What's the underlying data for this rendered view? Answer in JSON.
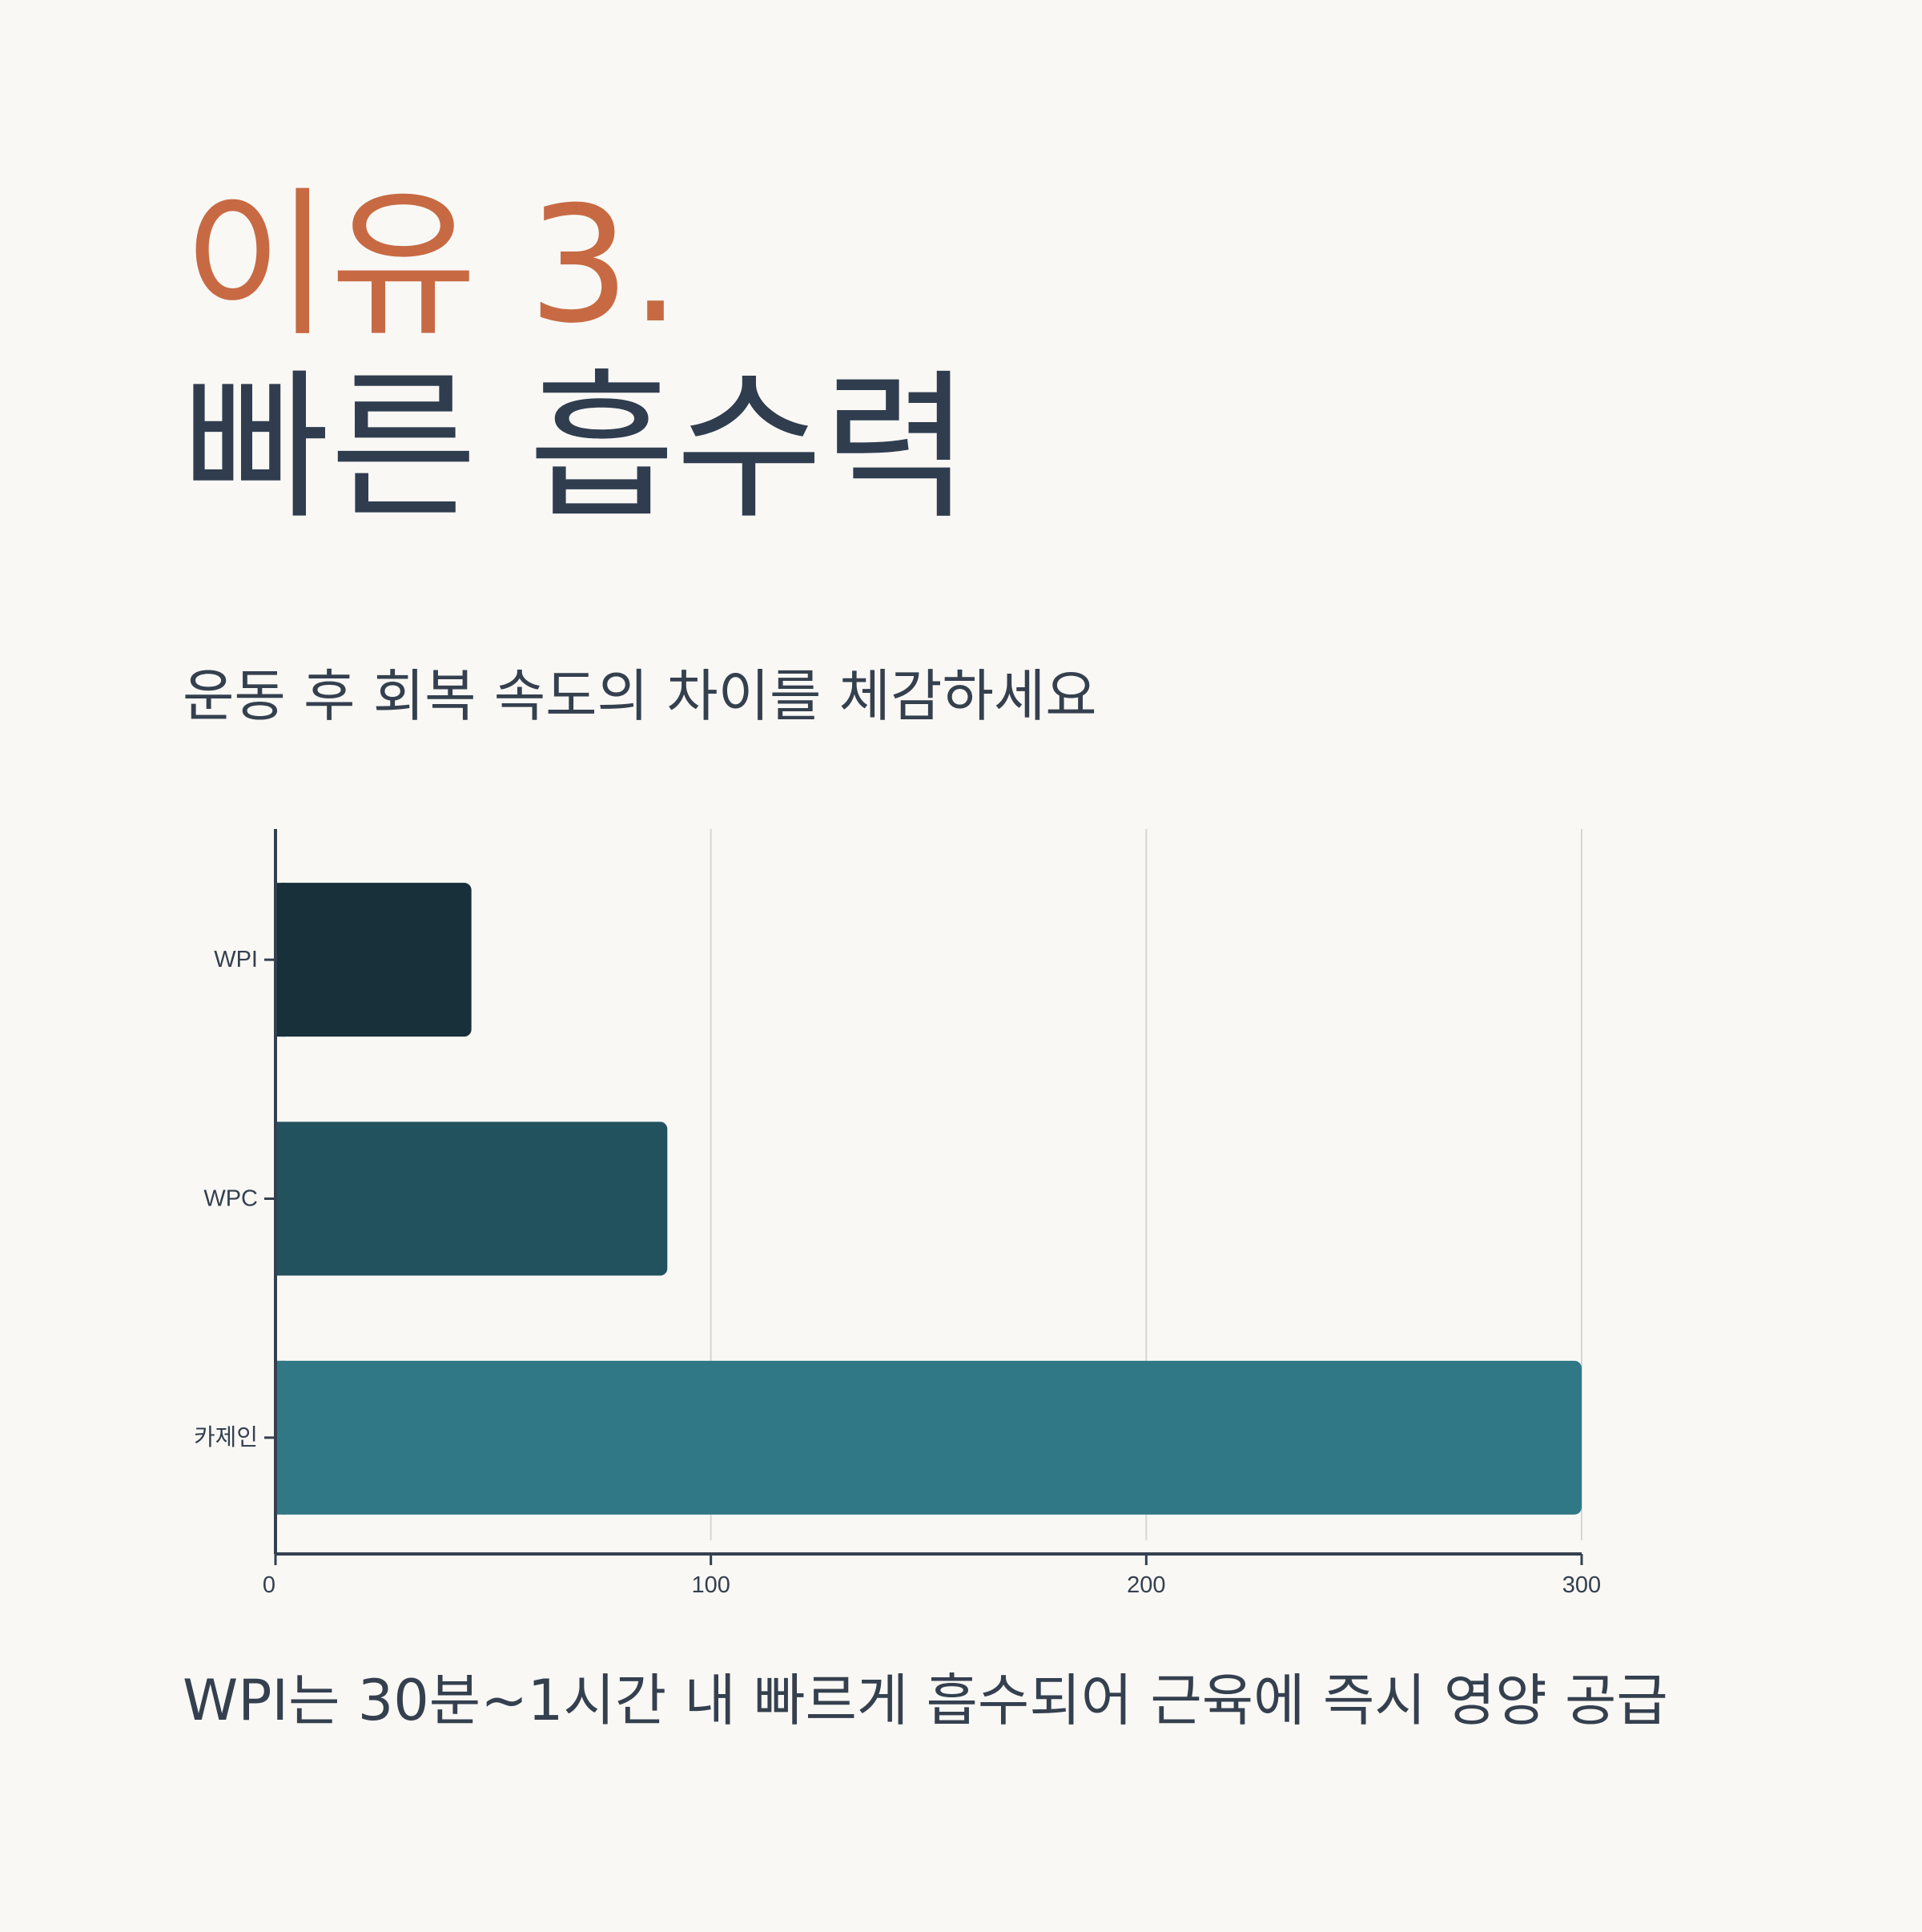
{
  "header": {
    "title_accent": "이유 3.",
    "title_main": "빠른 흡수력",
    "subtitle": "운동 후 회복 속도의 차이를 체감하세요"
  },
  "footnote": "WPI는 30분~1시간 내 빠르게 흡수되어 근육에 즉시 영양 공급",
  "colors": {
    "accent": "#c76a43",
    "text": "#35404f",
    "grid": "#d6d6d6",
    "axis": "#35404f"
  },
  "chart_data": {
    "type": "bar",
    "orientation": "horizontal",
    "categories": [
      "WPI",
      "WPC",
      "카제인"
    ],
    "values": [
      45,
      90,
      300
    ],
    "colors": [
      "#17303a",
      "#23525f",
      "#317887"
    ],
    "xlim": [
      0,
      300
    ],
    "xticks": [
      0,
      100,
      200,
      300
    ],
    "grid": true,
    "legend": "none"
  }
}
